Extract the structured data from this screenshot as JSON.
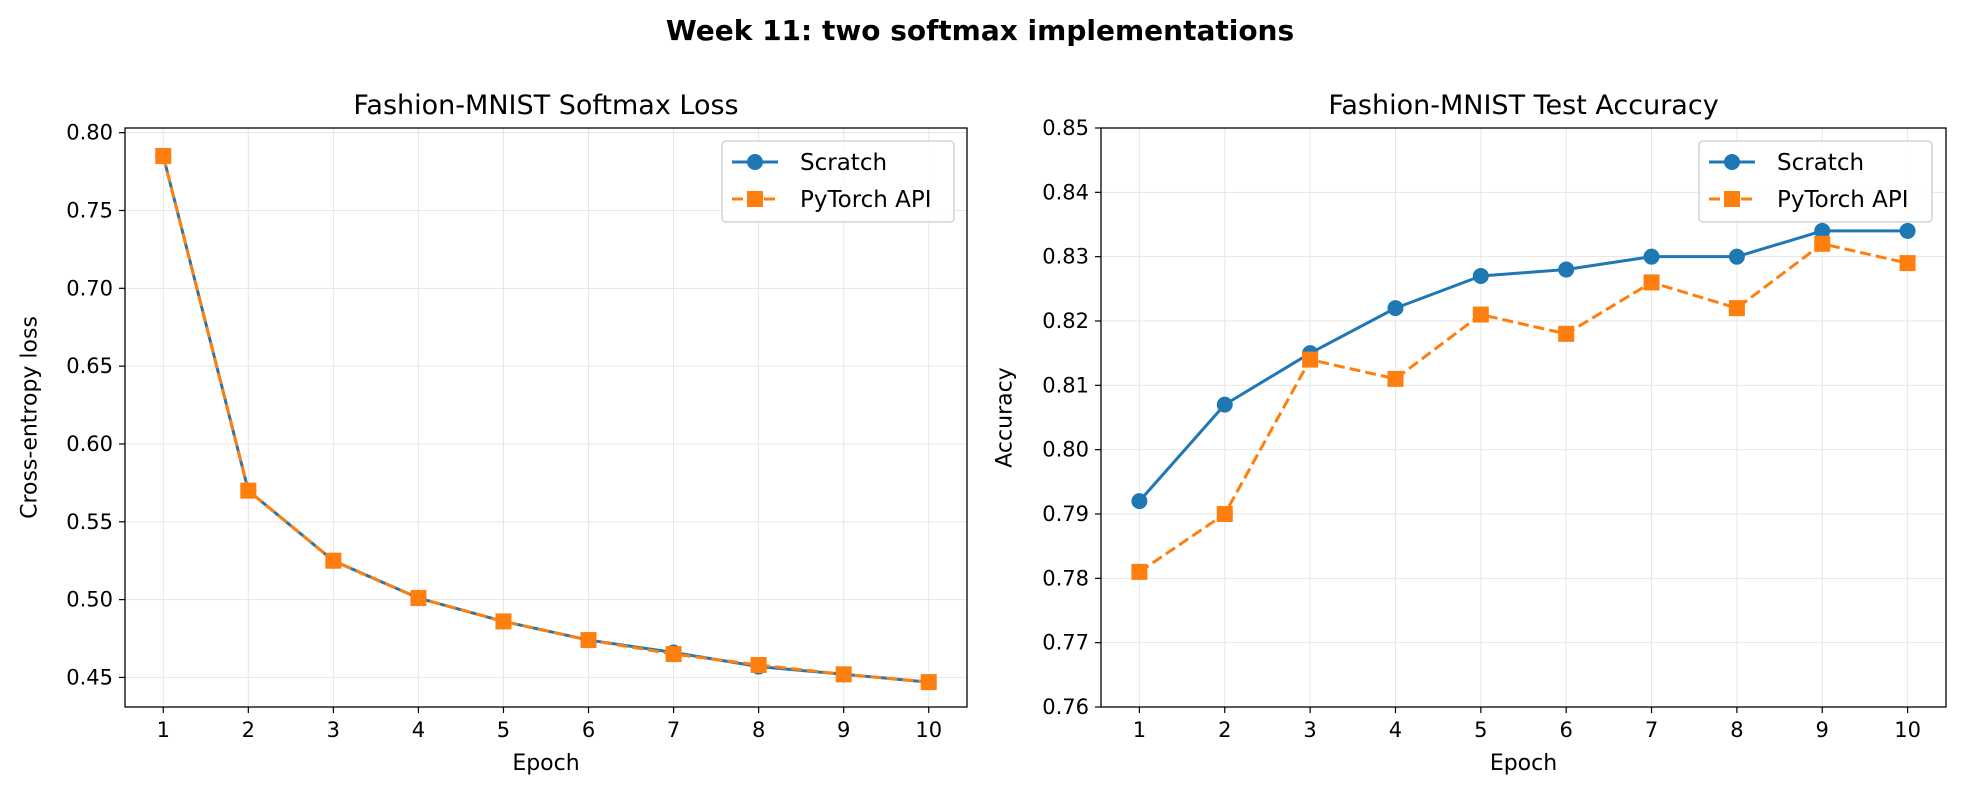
{
  "figure": {
    "suptitle": "Week 11: two softmax implementations"
  },
  "colors": {
    "scratch": "#1f77b4",
    "pytorch": "#ff7f0e",
    "grid": "#e6e6e6"
  },
  "chart_data": [
    {
      "type": "line",
      "title": "Fashion-MNIST Softmax Loss",
      "xlabel": "Epoch",
      "ylabel": "Cross-entropy loss",
      "x": [
        1,
        2,
        3,
        4,
        5,
        6,
        7,
        8,
        9,
        10
      ],
      "xticks": [
        "1",
        "2",
        "3",
        "4",
        "5",
        "6",
        "7",
        "8",
        "9",
        "10"
      ],
      "xlim": [
        0.55,
        10.45
      ],
      "ylim": [
        0.431,
        0.803
      ],
      "yticks": [
        "0.45",
        "0.50",
        "0.55",
        "0.60",
        "0.65",
        "0.70",
        "0.75",
        "0.80"
      ],
      "grid": true,
      "legend": "top-right",
      "series": [
        {
          "name": "Scratch",
          "marker": "circle",
          "linestyle": "solid",
          "values": [
            0.785,
            0.57,
            0.525,
            0.501,
            0.486,
            0.474,
            0.466,
            0.457,
            0.452,
            0.447
          ]
        },
        {
          "name": "PyTorch API",
          "marker": "square",
          "linestyle": "dashed",
          "values": [
            0.785,
            0.57,
            0.525,
            0.501,
            0.486,
            0.474,
            0.465,
            0.458,
            0.452,
            0.447
          ]
        }
      ]
    },
    {
      "type": "line",
      "title": "Fashion-MNIST Test Accuracy",
      "xlabel": "Epoch",
      "ylabel": "Accuracy",
      "x": [
        1,
        2,
        3,
        4,
        5,
        6,
        7,
        8,
        9,
        10
      ],
      "xticks": [
        "1",
        "2",
        "3",
        "4",
        "5",
        "6",
        "7",
        "8",
        "9",
        "10"
      ],
      "xlim": [
        0.55,
        10.45
      ],
      "ylim": [
        0.76,
        0.85
      ],
      "yticks": [
        "0.76",
        "0.77",
        "0.78",
        "0.79",
        "0.80",
        "0.81",
        "0.82",
        "0.83",
        "0.84",
        "0.85"
      ],
      "grid": true,
      "legend": "top-right",
      "series": [
        {
          "name": "Scratch",
          "marker": "circle",
          "linestyle": "solid",
          "values": [
            0.792,
            0.807,
            0.815,
            0.822,
            0.827,
            0.828,
            0.83,
            0.83,
            0.834,
            0.834
          ]
        },
        {
          "name": "PyTorch API",
          "marker": "square",
          "linestyle": "dashed",
          "values": [
            0.781,
            0.79,
            0.814,
            0.811,
            0.821,
            0.818,
            0.826,
            0.822,
            0.832,
            0.829
          ]
        }
      ]
    }
  ]
}
